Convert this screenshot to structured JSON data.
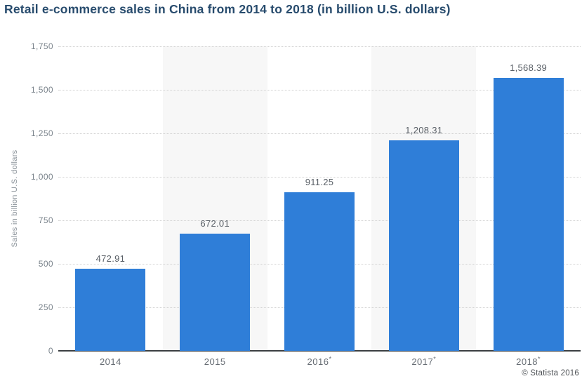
{
  "title": "Retail e-commerce sales in China from 2014 to 2018 (in billion U.S. dollars)",
  "credit": "© Statista 2016",
  "colors": {
    "bar": "#2f7ed8",
    "title": "#274b6d",
    "plot_band": "#f7f7f7",
    "gridline": "#d2d2d2",
    "axis_text": "#7b848c",
    "value_label": "#595f66",
    "baseline": "#3b3f42"
  },
  "chart_data": {
    "type": "bar",
    "title": "Retail e-commerce sales in China from 2014 to 2018 (in billion U.S. dollars)",
    "categories": [
      "2014",
      "2015",
      "2016",
      "2017",
      "2018"
    ],
    "category_footnote_flags": [
      false,
      false,
      true,
      true,
      true
    ],
    "footnote_marker": "*",
    "values": [
      472.91,
      672.01,
      911.25,
      1208.31,
      1568.39
    ],
    "values_formatted": [
      "472.91",
      "672.01",
      "911.25",
      "1,208.31",
      "1,568.39"
    ],
    "xlabel": "",
    "ylabel": "Sales in billion U.S. dollars",
    "ylim": [
      0,
      1750
    ],
    "yticks": [
      0,
      250,
      500,
      750,
      1000,
      1250,
      1500,
      1750
    ],
    "ytick_labels": [
      "0",
      "250",
      "500",
      "750",
      "1,000",
      "1,250",
      "1,500",
      "1,750"
    ],
    "grid": "horizontal-dotted",
    "legend": "none",
    "alternating_plot_bands": true
  }
}
